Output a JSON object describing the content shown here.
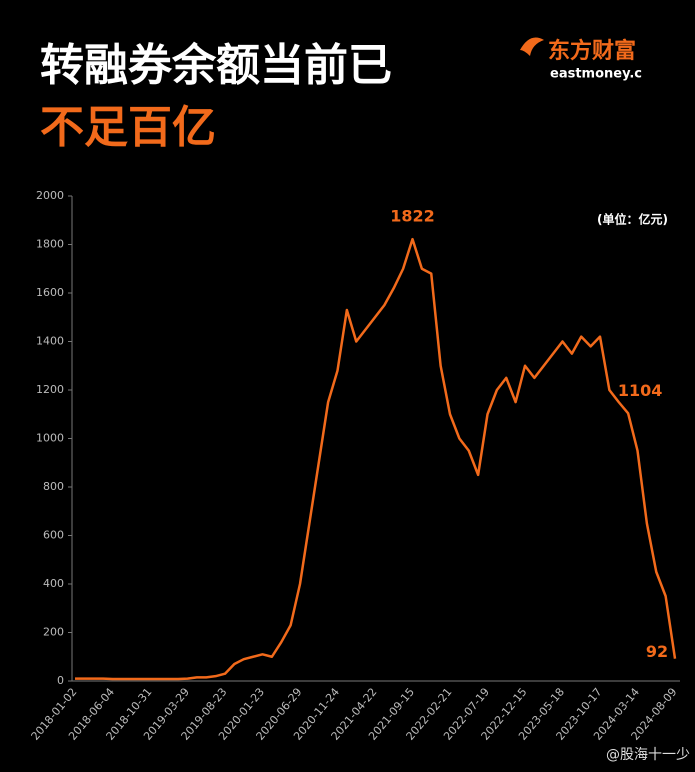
{
  "chart_data": {
    "type": "line",
    "title": "转融券余额当前已",
    "subtitle": "不足百亿",
    "brand": "东方财富",
    "brand_sub": "eastmoney.c",
    "unit": "(单位：亿元)",
    "watermark": "@股海十一少",
    "color": "#f26a1b",
    "categories": [
      "2018-01-02",
      null,
      null,
      null,
      "2018-06-04",
      null,
      null,
      null,
      "2018-10-31",
      null,
      null,
      null,
      "2019-03-29",
      null,
      null,
      null,
      "2019-08-23",
      null,
      null,
      null,
      "2020-01-23",
      null,
      null,
      null,
      "2020-06-29",
      null,
      null,
      null,
      "2020-11-24",
      null,
      null,
      null,
      "2021-04-22",
      null,
      null,
      null,
      "2021-09-15",
      null,
      null,
      null,
      "2022-02-21",
      null,
      null,
      null,
      "2022-07-19",
      null,
      null,
      null,
      "2022-12-15",
      null,
      null,
      null,
      "2023-05-18",
      null,
      null,
      null,
      "2023-10-17",
      null,
      null,
      null,
      "2024-03-14",
      null,
      null,
      null,
      "2024-08-09"
    ],
    "values": [
      10,
      10,
      10,
      10,
      8,
      8,
      8,
      8,
      8,
      8,
      8,
      8,
      10,
      15,
      15,
      20,
      30,
      70,
      90,
      100,
      110,
      100,
      160,
      230,
      400,
      650,
      900,
      1150,
      1280,
      1530,
      1400,
      1450,
      1500,
      1550,
      1620,
      1700,
      1822,
      1700,
      1680,
      1300,
      1100,
      1000,
      950,
      850,
      1100,
      1200,
      1250,
      1150,
      1300,
      1250,
      1300,
      1350,
      1400,
      1350,
      1420,
      1380,
      1420,
      1200,
      1150,
      1104,
      950,
      650,
      450,
      350,
      92
    ],
    "value_labels": [
      null,
      null,
      null,
      null,
      null,
      null,
      null,
      null,
      null,
      null,
      null,
      null,
      null,
      null,
      null,
      null,
      null,
      null,
      null,
      null,
      null,
      null,
      null,
      null,
      null,
      null,
      null,
      null,
      null,
      null,
      null,
      null,
      null,
      null,
      null,
      null,
      "1822",
      null,
      null,
      null,
      null,
      null,
      null,
      null,
      null,
      null,
      null,
      null,
      null,
      null,
      null,
      null,
      null,
      null,
      null,
      null,
      null,
      null,
      null,
      "1104",
      null,
      null,
      null,
      null,
      "92"
    ],
    "ylim": [
      0,
      2000
    ],
    "yticks": [
      0,
      200,
      400,
      600,
      800,
      1000,
      1200,
      1400,
      1600,
      1800,
      2000
    ]
  }
}
